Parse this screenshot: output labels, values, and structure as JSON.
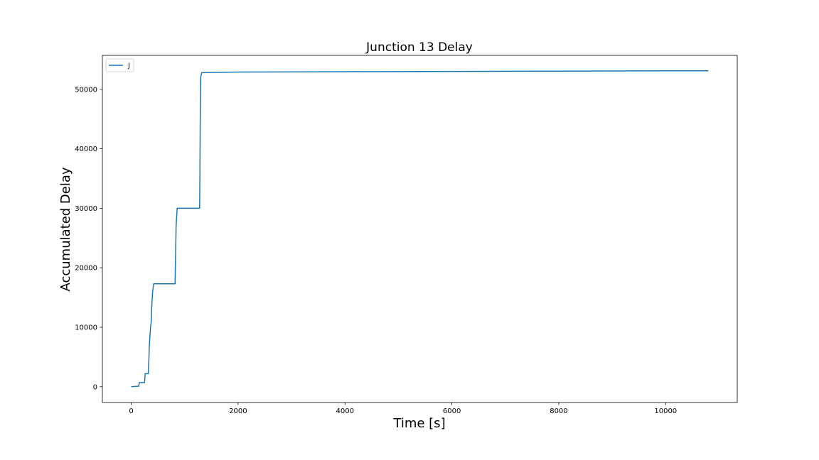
{
  "chart_data": {
    "type": "line",
    "title": "Junction 13 Delay",
    "xlabel": "Time [s]",
    "ylabel": "Accumulated Delay",
    "xlim": [
      -540,
      11340
    ],
    "ylim": [
      -2650,
      55700
    ],
    "xticks": [
      0,
      2000,
      4000,
      6000,
      8000,
      10000
    ],
    "yticks": [
      0,
      10000,
      20000,
      30000,
      40000,
      50000
    ],
    "grid": false,
    "legend_position": "upper left",
    "series": [
      {
        "name": "J",
        "color": "#1f77b4",
        "x": [
          0,
          140,
          150,
          250,
          260,
          320,
          330,
          340,
          360,
          375,
          380,
          400,
          420,
          450,
          500,
          820,
          830,
          840,
          860,
          1280,
          1285,
          1290,
          1300,
          1320,
          1350,
          2000,
          4000,
          6000,
          8000,
          10000,
          10800
        ],
        "y": [
          0,
          100,
          700,
          700,
          2200,
          2200,
          4500,
          7000,
          10000,
          11000,
          13000,
          16000,
          17300,
          17300,
          17300,
          17300,
          22000,
          27000,
          30000,
          30000,
          36000,
          44000,
          52000,
          52800,
          52800,
          52900,
          52950,
          53000,
          53050,
          53100,
          53100
        ]
      }
    ]
  }
}
